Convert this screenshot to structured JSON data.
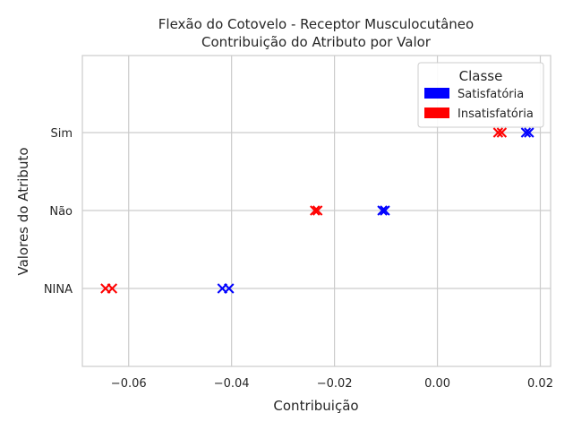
{
  "chart_data": {
    "type": "scatter",
    "title": "Flexão do Cotovelo - Receptor Musculocutâneo",
    "subtitle": "Contribuição do Atributo por Valor",
    "xlabel": "Contribuição",
    "ylabel": "Valores do Atributo",
    "xlim": [
      -0.069,
      0.022
    ],
    "x_ticks": [
      -0.06,
      -0.04,
      -0.02,
      0.0,
      0.02
    ],
    "x_tick_labels": [
      "−0.06",
      "−0.04",
      "−0.02",
      "0.00",
      "0.02"
    ],
    "categories": [
      "NINA",
      "Não",
      "Sim"
    ],
    "grid": true,
    "marker": "x",
    "legend": {
      "title": "Classe",
      "position": "top-right",
      "entries": [
        {
          "label": "Satisfatória",
          "color": "#0000ff"
        },
        {
          "label": "Insatisfatória",
          "color": "#ff0000"
        }
      ]
    },
    "series": [
      {
        "name": "Satisfatória",
        "color": "#0000ff",
        "points": [
          {
            "x": 0.0172,
            "y": "Sim"
          },
          {
            "x": 0.0178,
            "y": "Sim"
          },
          {
            "x": -0.0107,
            "y": "Não"
          },
          {
            "x": -0.0102,
            "y": "Não"
          },
          {
            "x": -0.0418,
            "y": "NINA"
          },
          {
            "x": -0.0405,
            "y": "NINA"
          }
        ]
      },
      {
        "name": "Insatisfatória",
        "color": "#ff0000",
        "points": [
          {
            "x": 0.0118,
            "y": "Sim"
          },
          {
            "x": 0.0125,
            "y": "Sim"
          },
          {
            "x": -0.0238,
            "y": "Não"
          },
          {
            "x": -0.0233,
            "y": "Não"
          },
          {
            "x": -0.0645,
            "y": "NINA"
          },
          {
            "x": -0.0632,
            "y": "NINA"
          }
        ]
      }
    ]
  }
}
